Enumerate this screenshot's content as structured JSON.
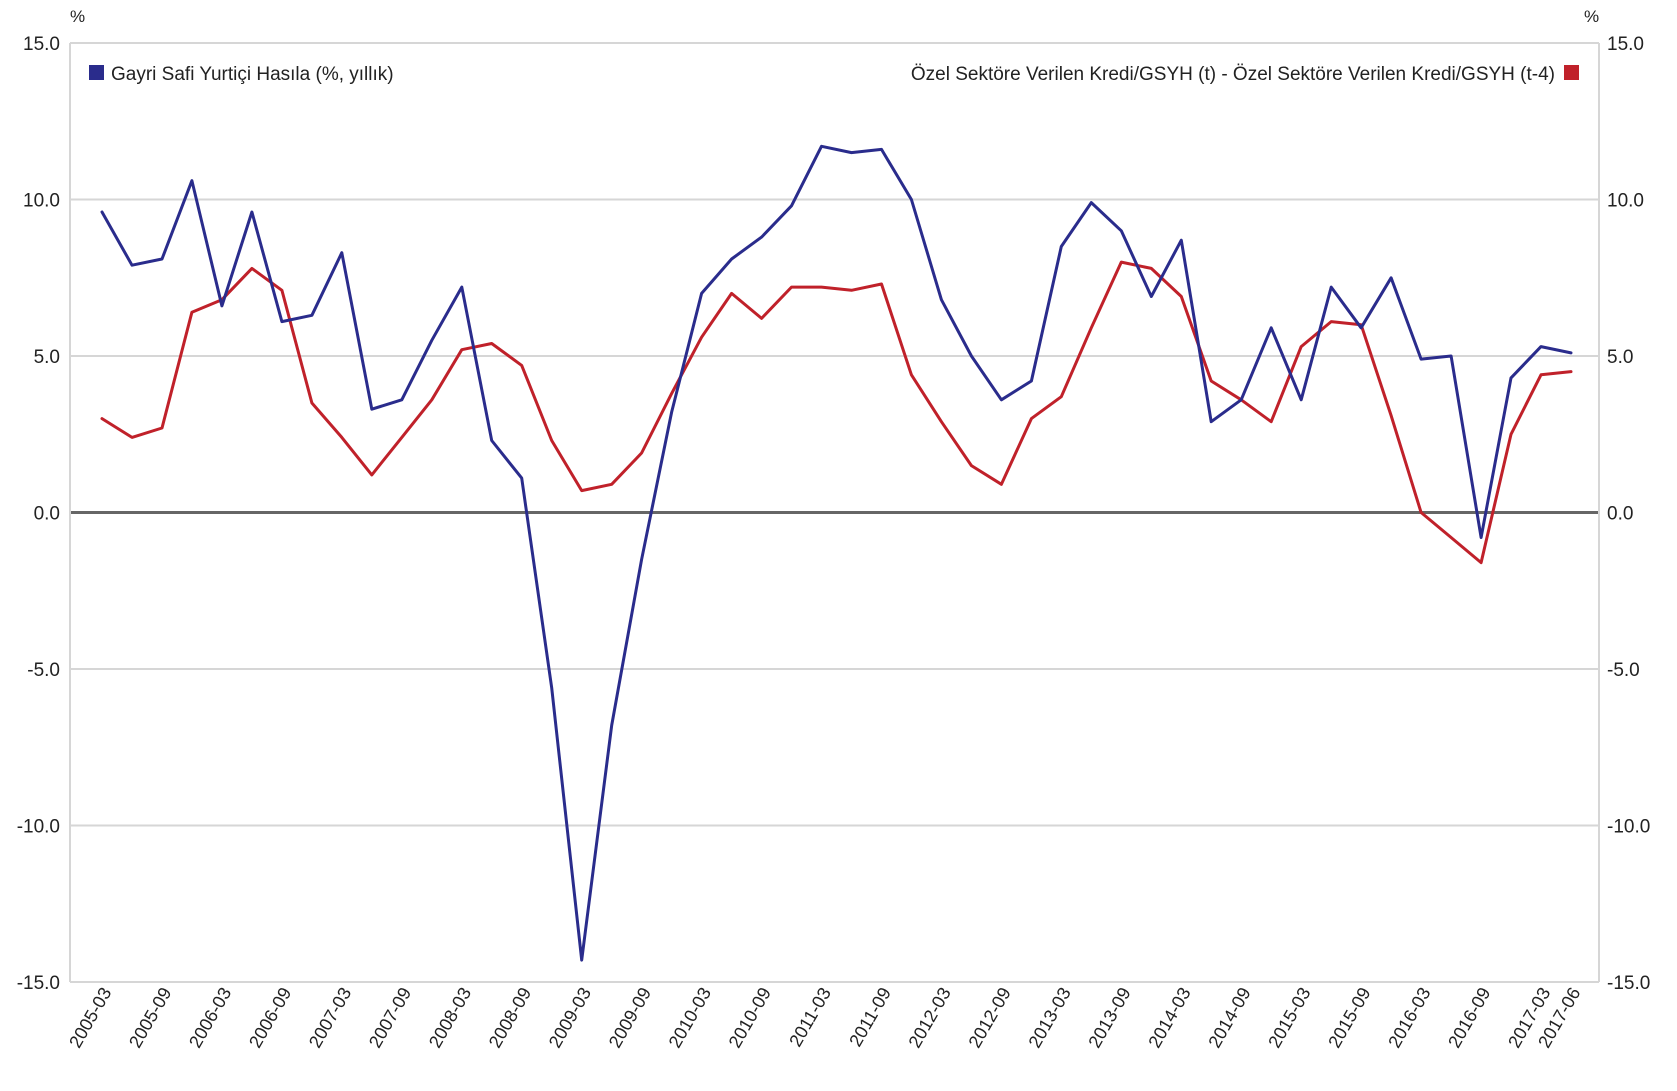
{
  "chart_data": {
    "type": "line",
    "y_unit_left": "%",
    "y_unit_right": "%",
    "ylim": [
      -15,
      15
    ],
    "y_ticks": [
      15,
      10,
      5,
      0,
      -5,
      -10,
      -15
    ],
    "y_tick_labels": [
      "15.0",
      "10.0",
      "5.0",
      "0.0",
      "-5.0",
      "-10.0",
      "-15.0"
    ],
    "grid": true,
    "x_tick_labels": [
      "2005-03",
      "2005-09",
      "2006-03",
      "2006-09",
      "2007-03",
      "2007-09",
      "2008-03",
      "2008-09",
      "2009-03",
      "2009-09",
      "2010-03",
      "2010-09",
      "2011-03",
      "2011-09",
      "2012-03",
      "2012-09",
      "2013-03",
      "2013-09",
      "2014-03",
      "2014-09",
      "2015-03",
      "2015-09",
      "2016-03",
      "2016-09",
      "2017-03",
      "2017-06"
    ],
    "categories": [
      "2005-03",
      "2005-06",
      "2005-09",
      "2005-12",
      "2006-03",
      "2006-06",
      "2006-09",
      "2006-12",
      "2007-03",
      "2007-06",
      "2007-09",
      "2007-12",
      "2008-03",
      "2008-06",
      "2008-09",
      "2008-12",
      "2009-03",
      "2009-06",
      "2009-09",
      "2009-12",
      "2010-03",
      "2010-06",
      "2010-09",
      "2010-12",
      "2011-03",
      "2011-06",
      "2011-09",
      "2011-12",
      "2012-03",
      "2012-06",
      "2012-09",
      "2012-12",
      "2013-03",
      "2013-06",
      "2013-09",
      "2013-12",
      "2014-03",
      "2014-06",
      "2014-09",
      "2014-12",
      "2015-03",
      "2015-06",
      "2015-09",
      "2015-12",
      "2016-03",
      "2016-06",
      "2016-09",
      "2016-12",
      "2017-03",
      "2017-06"
    ],
    "series": [
      {
        "name": "Gayri Safi Yurtiçi Hasıla (%, yıllık)",
        "color": "#2a2c8c",
        "legend_position": "top-left",
        "axis": "left",
        "values": [
          9.6,
          7.9,
          8.1,
          10.6,
          6.6,
          9.6,
          6.1,
          6.3,
          8.3,
          3.3,
          3.6,
          5.5,
          7.2,
          2.3,
          1.1,
          -5.6,
          -14.3,
          -6.8,
          -1.5,
          3.2,
          7.0,
          8.1,
          8.8,
          9.8,
          11.7,
          11.5,
          11.6,
          10.0,
          6.8,
          5.0,
          3.6,
          4.2,
          8.5,
          9.9,
          9.0,
          6.9,
          8.7,
          2.9,
          3.6,
          5.9,
          3.6,
          7.2,
          5.9,
          7.5,
          4.9,
          5.0,
          -0.8,
          4.3,
          5.3,
          5.1
        ]
      },
      {
        "name": "Özel Sektöre Verilen Kredi/GSYH (t) - Özel Sektöre Verilen Kredi/GSYH (t-4)",
        "color": "#c0212a",
        "legend_position": "top-right",
        "axis": "right",
        "values": [
          3.0,
          2.4,
          2.7,
          6.4,
          6.8,
          7.8,
          7.1,
          3.5,
          2.4,
          1.2,
          2.4,
          3.6,
          5.2,
          5.4,
          4.7,
          2.3,
          0.7,
          0.9,
          1.9,
          3.8,
          5.6,
          7.0,
          6.2,
          7.2,
          7.2,
          7.1,
          7.3,
          4.4,
          2.9,
          1.5,
          0.9,
          3.0,
          3.7,
          5.9,
          8.0,
          7.8,
          6.9,
          4.2,
          3.6,
          2.9,
          5.3,
          6.1,
          6.0,
          3.1,
          0.0,
          -0.8,
          -1.6,
          2.5,
          4.4,
          4.5
        ]
      }
    ]
  }
}
